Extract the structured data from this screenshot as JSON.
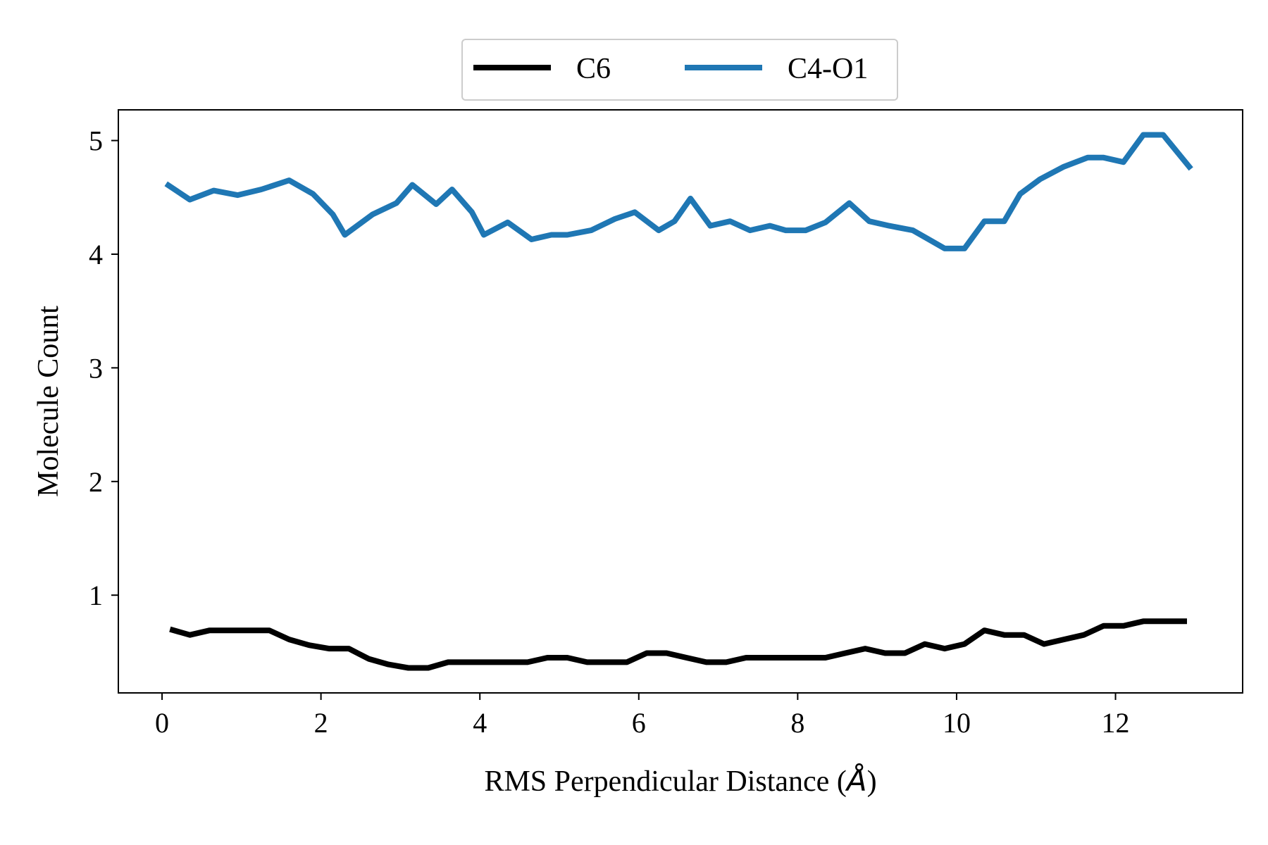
{
  "chart_data": {
    "type": "line",
    "xlabel": "RMS Perpendicular Distance (",
    "xlabel_symbol": "Å",
    "xlabel_close": ")",
    "ylabel": "Molecule Count",
    "xlim": [
      -0.55,
      13.6
    ],
    "ylim": [
      0.14,
      5.27
    ],
    "xticks": [
      0,
      2,
      4,
      6,
      8,
      10,
      12
    ],
    "xtick_labels": [
      "0",
      "2",
      "4",
      "6",
      "8",
      "10",
      "12"
    ],
    "yticks": [
      1,
      2,
      3,
      4,
      5
    ],
    "ytick_labels": [
      "1",
      "2",
      "3",
      "4",
      "5"
    ],
    "grid": false,
    "legend": {
      "placement": "top-center",
      "columns": 2
    },
    "series": [
      {
        "name": "C6",
        "color": "#000000",
        "x": [
          0.1,
          0.35,
          0.6,
          0.85,
          1.1,
          1.35,
          1.6,
          1.85,
          2.1,
          2.35,
          2.6,
          2.85,
          3.1,
          3.35,
          3.6,
          3.85,
          4.1,
          4.35,
          4.6,
          4.85,
          5.1,
          5.35,
          5.6,
          5.85,
          6.1,
          6.35,
          6.6,
          6.85,
          7.1,
          7.35,
          7.6,
          7.85,
          8.1,
          8.35,
          8.6,
          8.85,
          9.1,
          9.35,
          9.6,
          9.85,
          10.1,
          10.35,
          10.6,
          10.85,
          11.1,
          11.35,
          11.6,
          11.85,
          12.1,
          12.35,
          12.6,
          12.9
        ],
        "y": [
          0.7,
          0.65,
          0.69,
          0.69,
          0.69,
          0.69,
          0.61,
          0.56,
          0.53,
          0.53,
          0.44,
          0.39,
          0.36,
          0.36,
          0.41,
          0.41,
          0.41,
          0.41,
          0.41,
          0.45,
          0.45,
          0.41,
          0.41,
          0.41,
          0.49,
          0.49,
          0.45,
          0.41,
          0.41,
          0.45,
          0.45,
          0.45,
          0.45,
          0.45,
          0.49,
          0.53,
          0.49,
          0.49,
          0.57,
          0.53,
          0.57,
          0.69,
          0.65,
          0.65,
          0.57,
          0.61,
          0.65,
          0.73,
          0.73,
          0.77,
          0.77,
          0.77
        ]
      },
      {
        "name": "C4-O1",
        "color": "#1f77b4",
        "x": [
          0.05,
          0.35,
          0.65,
          0.95,
          1.25,
          1.6,
          1.9,
          2.15,
          2.3,
          2.65,
          2.95,
          3.15,
          3.45,
          3.65,
          3.9,
          4.05,
          4.35,
          4.65,
          4.9,
          5.1,
          5.4,
          5.7,
          5.95,
          6.25,
          6.45,
          6.65,
          6.9,
          7.15,
          7.4,
          7.65,
          7.85,
          8.1,
          8.35,
          8.65,
          8.9,
          9.15,
          9.45,
          9.65,
          9.85,
          10.1,
          10.35,
          10.6,
          10.8,
          11.05,
          11.35,
          11.65,
          11.85,
          12.1,
          12.35,
          12.6,
          12.95
        ],
        "y": [
          4.62,
          4.48,
          4.56,
          4.52,
          4.57,
          4.65,
          4.53,
          4.35,
          4.17,
          4.35,
          4.45,
          4.61,
          4.44,
          4.57,
          4.37,
          4.17,
          4.28,
          4.13,
          4.17,
          4.17,
          4.21,
          4.31,
          4.37,
          4.21,
          4.29,
          4.49,
          4.25,
          4.29,
          4.21,
          4.25,
          4.21,
          4.21,
          4.28,
          4.45,
          4.29,
          4.25,
          4.21,
          4.13,
          4.05,
          4.05,
          4.29,
          4.29,
          4.53,
          4.66,
          4.77,
          4.85,
          4.85,
          4.81,
          5.05,
          5.05,
          4.75
        ]
      }
    ]
  }
}
